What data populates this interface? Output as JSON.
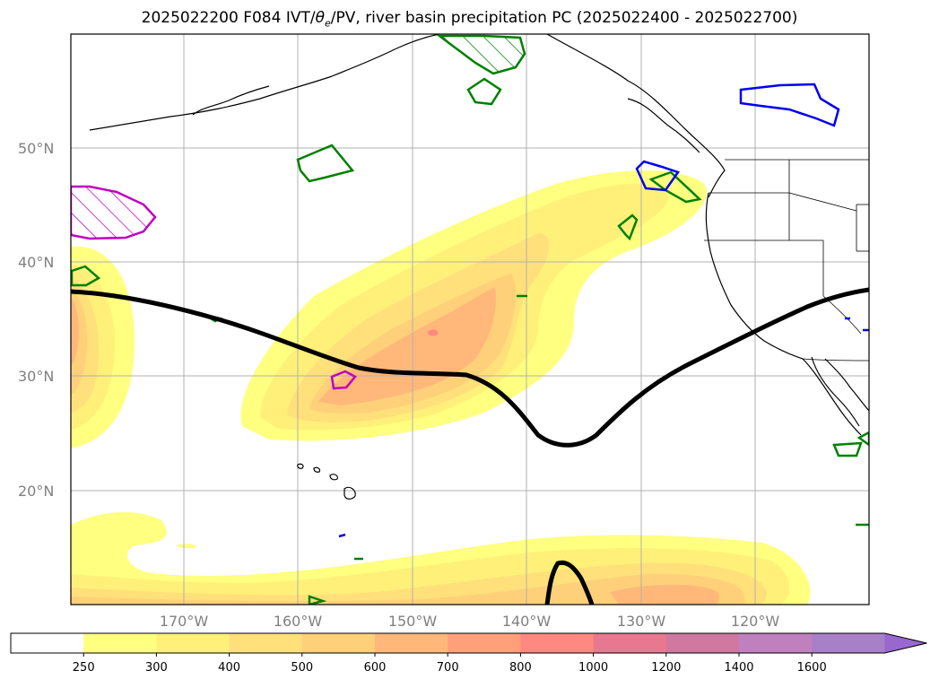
{
  "title_prefix": "2025022200 F084 IVT/",
  "title_theta": "θ",
  "title_sub": "e",
  "title_suffix": "/PV, river basin precipitation PC (2025022400 - 2025022700)",
  "lat_labels": [
    "50°N",
    "40°N",
    "30°N",
    "20°N"
  ],
  "lon_labels": [
    "170°W",
    "160°W",
    "150°W",
    "140°W",
    "130°W",
    "120°W"
  ],
  "colorbar": {
    "ticks": [
      "250",
      "300",
      "400",
      "500",
      "600",
      "700",
      "800",
      "1000",
      "1200",
      "1400",
      "1600"
    ],
    "colors": [
      "#ffffff",
      "#ffff80",
      "#fff07a",
      "#ffe07a",
      "#ffd07a",
      "#ffb87a",
      "#ffa07a",
      "#ff8880",
      "#e87890",
      "#d078a0",
      "#c080c0",
      "#a880c8",
      "#9868d0"
    ]
  },
  "colors": {
    "pv_contour": "#000000",
    "green_basins": "#008000",
    "blue_basins": "#0000ee",
    "magenta_basins": "#c000c0"
  }
}
